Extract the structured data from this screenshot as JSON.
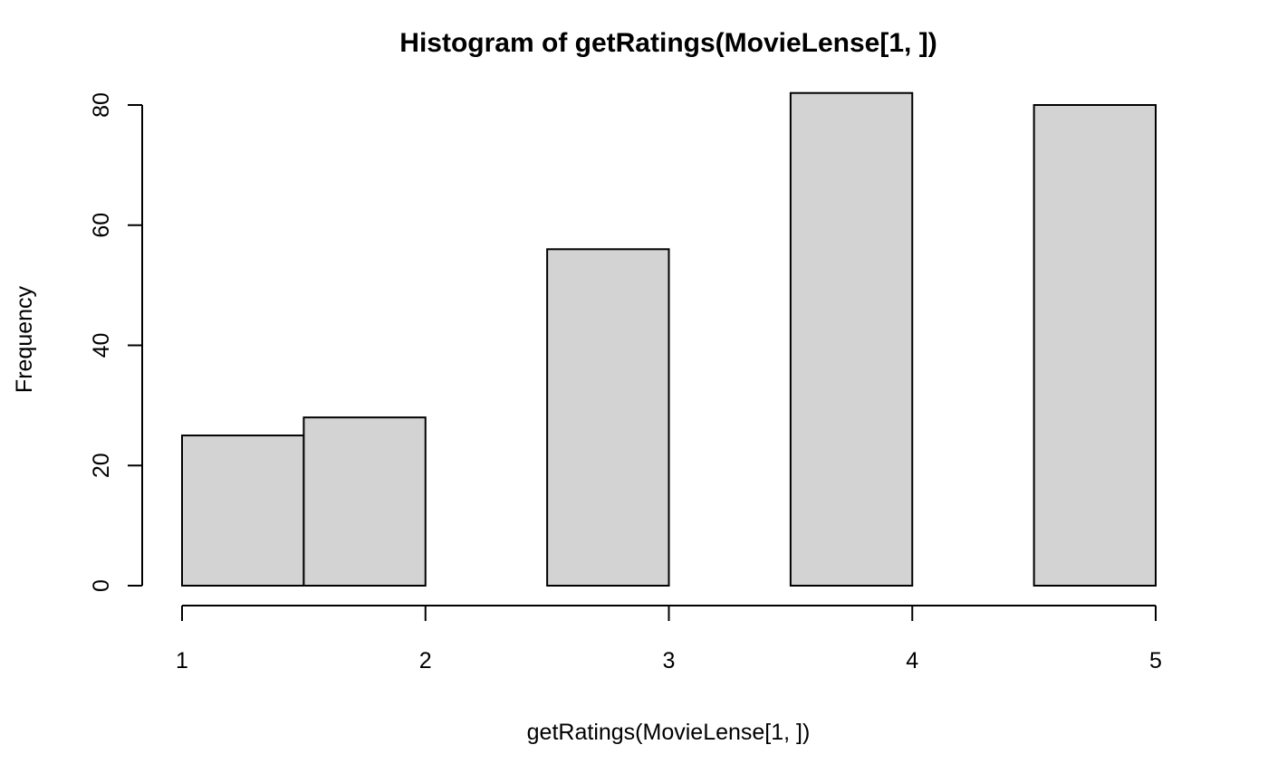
{
  "chart_data": {
    "type": "bar",
    "title": "Histogram of getRatings(MovieLense[1, ])",
    "xlabel": "getRatings(MovieLense[1, ])",
    "ylabel": "Frequency",
    "bins": [
      {
        "start": 1.0,
        "end": 1.5,
        "value": 25
      },
      {
        "start": 1.5,
        "end": 2.0,
        "value": 28
      },
      {
        "start": 2.0,
        "end": 2.5,
        "value": 0
      },
      {
        "start": 2.5,
        "end": 3.0,
        "value": 56
      },
      {
        "start": 3.0,
        "end": 3.5,
        "value": 0
      },
      {
        "start": 3.5,
        "end": 4.0,
        "value": 82
      },
      {
        "start": 4.0,
        "end": 4.5,
        "value": 0
      },
      {
        "start": 4.5,
        "end": 5.0,
        "value": 80
      }
    ],
    "xlim": [
      1,
      5
    ],
    "ylim": [
      0,
      82
    ],
    "xticks": [
      "1",
      "2",
      "3",
      "4",
      "5"
    ],
    "yticks": [
      "0",
      "20",
      "40",
      "60",
      "80"
    ],
    "bar_color": "#d3d3d3",
    "edge_color": "#000000",
    "grid": false
  }
}
